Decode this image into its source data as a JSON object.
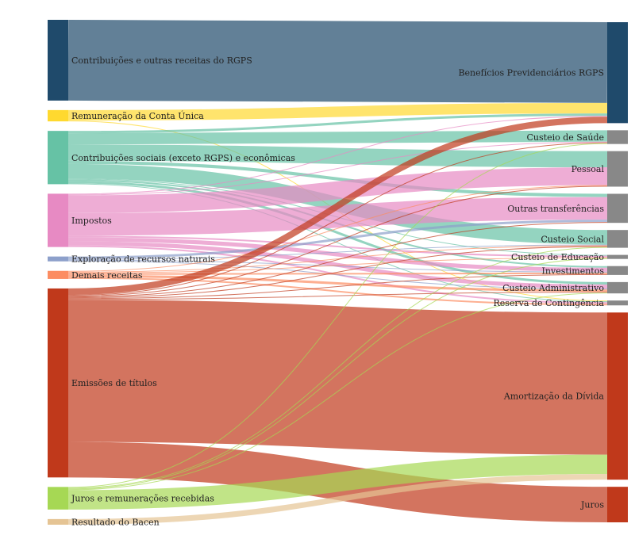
{
  "chart_data": {
    "type": "sankey",
    "sources": [
      {
        "id": "rgps",
        "label": "Contribuições e outras receitas do RGPS",
        "color": "#1f4a6b"
      },
      {
        "id": "conta",
        "label": "Remuneração da Conta Única",
        "color": "#ffd92f"
      },
      {
        "id": "contrib",
        "label": "Contribuições sociais (exceto RGPS) e econômicas",
        "color": "#66c2a5"
      },
      {
        "id": "impostos",
        "label": "Impostos",
        "color": "#e78ac3"
      },
      {
        "id": "explor",
        "label": "Exploração de recursos naturais",
        "color": "#8da0cb"
      },
      {
        "id": "demais",
        "label": "Demais receitas",
        "color": "#fc8d62"
      },
      {
        "id": "emissoes",
        "label": "Emissões de títulos",
        "color": "#c0391b"
      },
      {
        "id": "juros_rec",
        "label": "Juros e remunerações recebidas",
        "color": "#a6d854"
      },
      {
        "id": "bacen",
        "label": "Resultado do Bacen",
        "color": "#e5c494"
      }
    ],
    "targets": [
      {
        "id": "beneficios",
        "label": "Benefícios Previdenciários RGPS",
        "color": "#1f4a6b"
      },
      {
        "id": "saude",
        "label": "Custeio de Saúde",
        "color": "#888888"
      },
      {
        "id": "pessoal",
        "label": "Pessoal",
        "color": "#888888"
      },
      {
        "id": "outras",
        "label": "Outras transferências",
        "color": "#888888"
      },
      {
        "id": "social",
        "label": "Custeio Social",
        "color": "#888888"
      },
      {
        "id": "educacao",
        "label": "Custeio de Educação",
        "color": "#888888"
      },
      {
        "id": "invest",
        "label": "Investimentos",
        "color": "#888888"
      },
      {
        "id": "admin",
        "label": "Custeio Administrativo",
        "color": "#888888"
      },
      {
        "id": "reserva",
        "label": "Reserva de Contingência",
        "color": "#888888"
      },
      {
        "id": "amort",
        "label": "Amortização da Dívida",
        "color": "#c0391b"
      },
      {
        "id": "juros",
        "label": "Juros",
        "color": "#c0391b"
      }
    ],
    "links": [
      {
        "source": "rgps",
        "target": "beneficios",
        "value": 100
      },
      {
        "source": "conta",
        "target": "beneficios",
        "value": 13
      },
      {
        "source": "conta",
        "target": "reserva",
        "value": 1
      },
      {
        "source": "contrib",
        "target": "beneficios",
        "value": 3
      },
      {
        "source": "contrib",
        "target": "saude",
        "value": 14
      },
      {
        "source": "contrib",
        "target": "pessoal",
        "value": 20
      },
      {
        "source": "contrib",
        "target": "outras",
        "value": 4
      },
      {
        "source": "contrib",
        "target": "social",
        "value": 18
      },
      {
        "source": "contrib",
        "target": "educacao",
        "value": 1
      },
      {
        "source": "contrib",
        "target": "invest",
        "value": 2
      },
      {
        "source": "contrib",
        "target": "admin",
        "value": 3
      },
      {
        "source": "contrib",
        "target": "reserva",
        "value": 1
      },
      {
        "source": "impostos",
        "target": "beneficios",
        "value": 1
      },
      {
        "source": "impostos",
        "target": "saude",
        "value": 1
      },
      {
        "source": "impostos",
        "target": "pessoal",
        "value": 22
      },
      {
        "source": "impostos",
        "target": "outras",
        "value": 28
      },
      {
        "source": "impostos",
        "target": "educacao",
        "value": 2
      },
      {
        "source": "impostos",
        "target": "invest",
        "value": 5
      },
      {
        "source": "impostos",
        "target": "admin",
        "value": 5
      },
      {
        "source": "impostos",
        "target": "reserva",
        "value": 2
      },
      {
        "source": "explor",
        "target": "outras",
        "value": 3
      },
      {
        "source": "explor",
        "target": "social",
        "value": 1
      },
      {
        "source": "explor",
        "target": "invest",
        "value": 1
      },
      {
        "source": "explor",
        "target": "admin",
        "value": 1
      },
      {
        "source": "demais",
        "target": "pessoal",
        "value": 1
      },
      {
        "source": "demais",
        "target": "social",
        "value": 1
      },
      {
        "source": "demais",
        "target": "educacao",
        "value": 1
      },
      {
        "source": "demais",
        "target": "invest",
        "value": 2
      },
      {
        "source": "demais",
        "target": "admin",
        "value": 3
      },
      {
        "source": "demais",
        "target": "reserva",
        "value": 2
      },
      {
        "source": "emissoes",
        "target": "beneficios",
        "value": 8
      },
      {
        "source": "emissoes",
        "target": "saude",
        "value": 1
      },
      {
        "source": "emissoes",
        "target": "pessoal",
        "value": 1
      },
      {
        "source": "emissoes",
        "target": "outras",
        "value": 1
      },
      {
        "source": "emissoes",
        "target": "social",
        "value": 1
      },
      {
        "source": "emissoes",
        "target": "invest",
        "value": 1
      },
      {
        "source": "emissoes",
        "target": "admin",
        "value": 1
      },
      {
        "source": "emissoes",
        "target": "amort",
        "value": 176
      },
      {
        "source": "emissoes",
        "target": "juros",
        "value": 44
      },
      {
        "source": "juros_rec",
        "target": "saude",
        "value": 1
      },
      {
        "source": "juros_rec",
        "target": "social",
        "value": 1
      },
      {
        "source": "juros_rec",
        "target": "educacao",
        "value": 1
      },
      {
        "source": "juros_rec",
        "target": "admin",
        "value": 1
      },
      {
        "source": "juros_rec",
        "target": "amort",
        "value": 24
      },
      {
        "source": "bacen",
        "target": "amort",
        "value": 7
      }
    ]
  }
}
